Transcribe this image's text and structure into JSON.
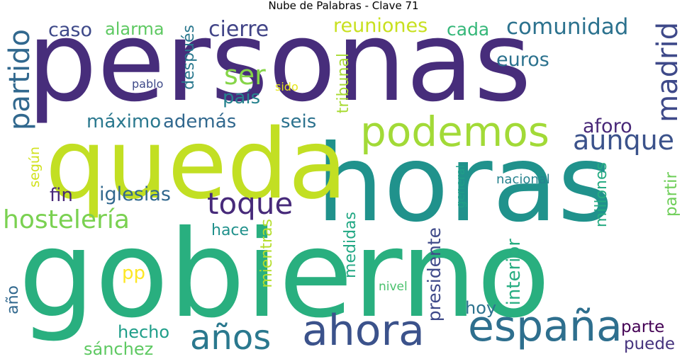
{
  "title": "Nube de Palabras - Clave 71",
  "colors": {
    "dark_purple": "#440154",
    "indigo": "#482878",
    "blue": "#3e4989",
    "slate_blue": "#31688e",
    "teal_blue": "#26828e",
    "teal": "#1f9e89",
    "green": "#35b779",
    "light_green": "#6ece58",
    "yellow_green": "#b5de2b",
    "yellow": "#fde725"
  },
  "words": [
    {
      "text": "personas",
      "color": "#472d7b"
    },
    {
      "text": "gobierno",
      "color": "#29af7f"
    },
    {
      "text": "horas",
      "color": "#20928c"
    },
    {
      "text": "queda",
      "color": "#c2df23"
    },
    {
      "text": "podemos",
      "color": "#a2da37"
    },
    {
      "text": "españa",
      "color": "#2e6f8e"
    },
    {
      "text": "ahora",
      "color": "#3b528b"
    },
    {
      "text": "años",
      "color": "#2a788e"
    },
    {
      "text": "hostelería",
      "color": "#7ad151"
    },
    {
      "text": "toque",
      "color": "#472a7a"
    },
    {
      "text": "partido",
      "color": "#31688e"
    },
    {
      "text": "madrid",
      "color": "#3e4989"
    },
    {
      "text": "ser",
      "color": "#86d549"
    },
    {
      "text": "aunque",
      "color": "#3b528b"
    },
    {
      "text": "comunidad",
      "color": "#2c728e"
    },
    {
      "text": "reuniones",
      "color": "#c8e020"
    },
    {
      "text": "cierre",
      "color": "#414487"
    },
    {
      "text": "caso",
      "color": "#3e4989"
    },
    {
      "text": "alarma",
      "color": "#5ec962"
    },
    {
      "text": "cada",
      "color": "#35b779"
    },
    {
      "text": "euros",
      "color": "#2c728e"
    },
    {
      "text": "país",
      "color": "#26828e"
    },
    {
      "text": "máximo",
      "color": "#2a788e"
    },
    {
      "text": "además",
      "color": "#31688e"
    },
    {
      "text": "seis",
      "color": "#2c728e"
    },
    {
      "text": "aforo",
      "color": "#482878"
    },
    {
      "text": "iglesias",
      "color": "#31688e"
    },
    {
      "text": "fin",
      "color": "#482878"
    },
    {
      "text": "hace",
      "color": "#21918c"
    },
    {
      "text": "interior",
      "color": "#27ad81"
    },
    {
      "text": "hoy",
      "color": "#2c728e"
    },
    {
      "text": "parte",
      "color": "#440154"
    },
    {
      "text": "puede",
      "color": "#46337e"
    },
    {
      "text": "hecho",
      "color": "#1f9e89"
    },
    {
      "text": "sánchez",
      "color": "#5ec962"
    },
    {
      "text": "pp",
      "color": "#fde725"
    },
    {
      "text": "año",
      "color": "#31688e"
    },
    {
      "text": "presidente",
      "color": "#3e4989"
    },
    {
      "text": "medidas",
      "color": "#22a884"
    },
    {
      "text": "mientras",
      "color": "#b5de2b"
    },
    {
      "text": "tribunal",
      "color": "#a8db34"
    },
    {
      "text": "después",
      "color": "#2a788e"
    },
    {
      "text": "millones",
      "color": "#25ab82"
    },
    {
      "text": "partir",
      "color": "#6ece58"
    },
    {
      "text": "según",
      "color": "#d0e11c"
    },
    {
      "text": "nacional",
      "color": "#26828e"
    },
    {
      "text": "general",
      "color": "#1fa088"
    },
    {
      "text": "nivel",
      "color": "#4ac16d"
    },
    {
      "text": "pablo",
      "color": "#3e4a89"
    },
    {
      "text": "sido",
      "color": "#e5e419"
    }
  ]
}
